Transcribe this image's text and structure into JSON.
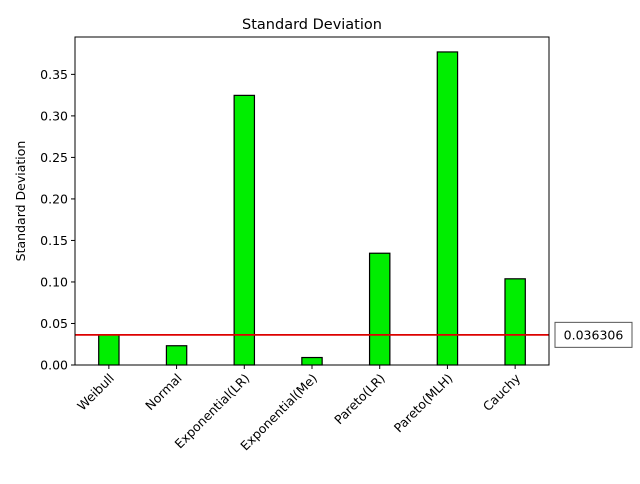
{
  "chart_data": {
    "type": "bar",
    "title": "Standard Deviation",
    "xlabel": "",
    "ylabel": "Standard Deviation",
    "categories": [
      "Weibull",
      "Normal",
      "Exponential(LR)",
      "Exponential(Me)",
      "Pareto(LR)",
      "Pareto(MLH)",
      "Cauchy"
    ],
    "values": [
      0.0363,
      0.0232,
      0.3247,
      0.009,
      0.1346,
      0.377,
      0.1038
    ],
    "ylim": [
      0,
      0.395
    ],
    "yticks": [
      0.0,
      0.05,
      0.1,
      0.15,
      0.2,
      0.25,
      0.3,
      0.35
    ],
    "ytick_labels": [
      "0.00",
      "0.05",
      "0.10",
      "0.15",
      "0.20",
      "0.25",
      "0.30",
      "0.35"
    ],
    "reference_line": {
      "value": 0.036306,
      "label": "0.036306",
      "color": "#dd0000"
    },
    "bar_color": "#00ee00",
    "bar_edge_color": "#000000",
    "grid": false,
    "legend": "none"
  }
}
